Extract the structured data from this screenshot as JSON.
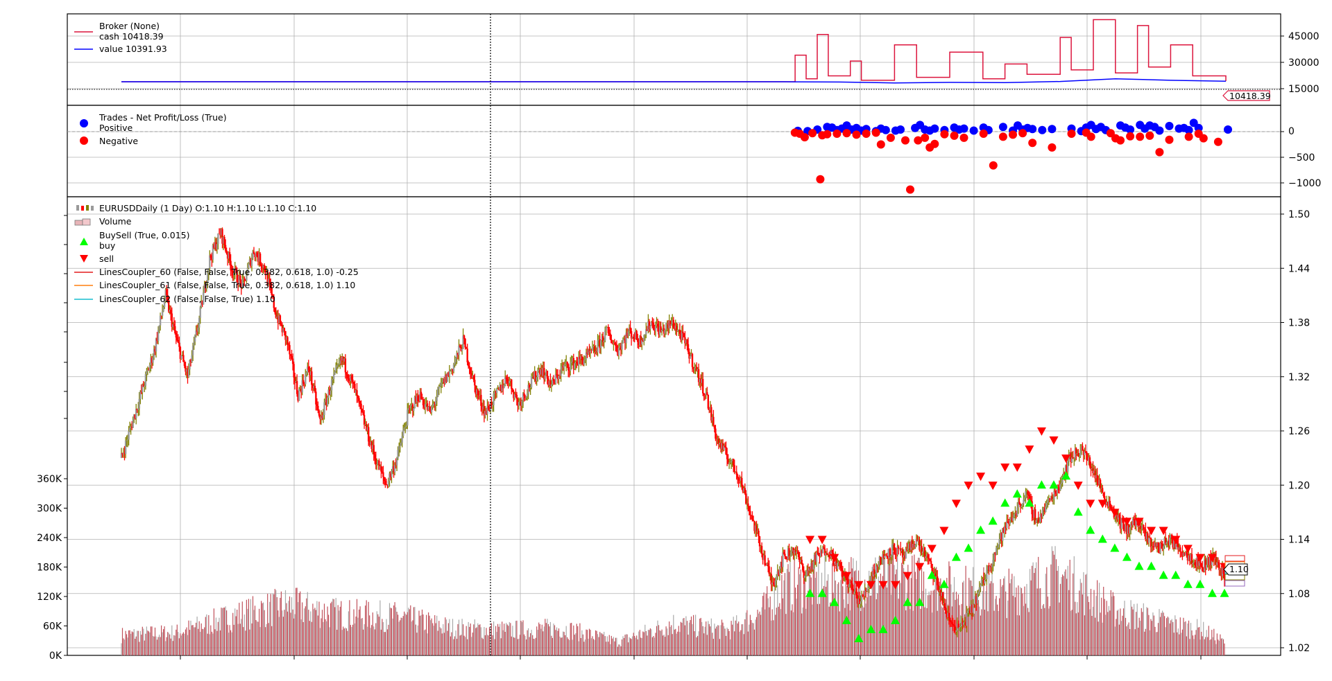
{
  "colors": {
    "cash": "#dc143c",
    "value": "#0000ff",
    "positive": "#0000ff",
    "negative": "#ff0000",
    "candle_up": "#808000",
    "candle_down": "#ff0000",
    "volume": "#c0505a",
    "buy": "#00ff00",
    "sell": "#ff0000",
    "line_red": "#e41a1c",
    "line_orange": "#ff7f0e",
    "line_cyan": "#17becf"
  },
  "chart_data": [
    {
      "type": "line",
      "panel": "broker",
      "legend": {
        "title": "Broker (None)",
        "cash_label": "cash 10418.39",
        "value_label": "value 10391.93"
      },
      "yticks": [
        "15000",
        "30000",
        "45000"
      ],
      "ylim": [
        -5000,
        55000
      ],
      "last_value_label": "10418.39",
      "series": [
        {
          "name": "cash",
          "x": [
            0,
            0.6,
            0.61,
            0.62,
            0.63,
            0.64,
            0.66,
            0.67,
            0.7,
            0.72,
            0.75,
            0.78,
            0.8,
            0.82,
            0.85,
            0.86,
            0.88,
            0.9,
            0.92,
            0.93,
            0.95,
            0.97,
            1.0
          ],
          "values": [
            10000,
            10000,
            28000,
            12000,
            42000,
            14000,
            24000,
            11000,
            35000,
            13000,
            30000,
            12000,
            22000,
            15000,
            40000,
            18000,
            52000,
            16000,
            48000,
            20000,
            35000,
            14000,
            10418.39
          ]
        },
        {
          "name": "value",
          "x": [
            0,
            0.6,
            0.65,
            0.7,
            0.75,
            0.8,
            0.85,
            0.9,
            0.95,
            1.0
          ],
          "values": [
            10000,
            10000,
            9800,
            9200,
            9600,
            9400,
            10200,
            12000,
            11000,
            10391.93
          ]
        }
      ]
    },
    {
      "type": "scatter",
      "panel": "trades",
      "legend": {
        "title": "Trades - Net Profit/Loss (True)",
        "positive_label": "Positive",
        "negative_label": "Negative"
      },
      "yticks": [
        "0",
        "−500",
        "−1000"
      ],
      "ylim": [
        -1150,
        300
      ],
      "positive": [
        [
          0.68,
          90
        ],
        [
          0.65,
          15
        ],
        [
          0.66,
          10
        ],
        [
          0.67,
          40
        ],
        [
          0.685,
          80
        ],
        [
          0.69,
          30
        ],
        [
          0.695,
          60
        ],
        [
          0.7,
          120
        ],
        [
          0.705,
          40
        ],
        [
          0.71,
          70
        ],
        [
          0.715,
          20
        ],
        [
          0.72,
          50
        ],
        [
          0.73,
          10
        ],
        [
          0.735,
          60
        ],
        [
          0.74,
          30
        ],
        [
          0.75,
          20
        ],
        [
          0.755,
          40
        ],
        [
          0.77,
          70
        ],
        [
          0.775,
          130
        ],
        [
          0.78,
          40
        ],
        [
          0.785,
          20
        ],
        [
          0.79,
          60
        ],
        [
          0.8,
          30
        ],
        [
          0.81,
          80
        ],
        [
          0.815,
          40
        ],
        [
          0.82,
          60
        ],
        [
          0.83,
          20
        ],
        [
          0.84,
          80
        ],
        [
          0.845,
          30
        ],
        [
          0.86,
          90
        ],
        [
          0.87,
          20
        ],
        [
          0.875,
          120
        ],
        [
          0.88,
          40
        ],
        [
          0.885,
          70
        ],
        [
          0.89,
          50
        ],
        [
          0.9,
          30
        ],
        [
          0.91,
          50
        ],
        [
          0.93,
          60
        ],
        [
          0.94,
          10
        ],
        [
          0.945,
          80
        ],
        [
          0.95,
          130
        ],
        [
          0.955,
          50
        ],
        [
          0.96,
          90
        ],
        [
          0.965,
          30
        ],
        [
          0.98,
          120
        ],
        [
          0.985,
          80
        ],
        [
          0.99,
          40
        ],
        [
          1.0,
          130
        ],
        [
          1.005,
          60
        ],
        [
          1.01,
          120
        ],
        [
          1.015,
          90
        ],
        [
          1.02,
          20
        ],
        [
          1.03,
          110
        ],
        [
          1.04,
          60
        ],
        [
          1.045,
          70
        ],
        [
          1.05,
          30
        ],
        [
          1.055,
          170
        ],
        [
          1.06,
          70
        ],
        [
          1.09,
          40
        ]
      ],
      "negative": [
        [
          0.647,
          -20
        ],
        [
          0.652,
          -40
        ],
        [
          0.657,
          -110
        ],
        [
          0.665,
          -30
        ],
        [
          0.673,
          -930
        ],
        [
          0.675,
          -70
        ],
        [
          0.68,
          -50
        ],
        [
          0.69,
          -40
        ],
        [
          0.7,
          -30
        ],
        [
          0.71,
          -60
        ],
        [
          0.72,
          -40
        ],
        [
          0.73,
          -20
        ],
        [
          0.735,
          -250
        ],
        [
          0.745,
          -120
        ],
        [
          0.76,
          -170
        ],
        [
          0.765,
          -1130
        ],
        [
          0.773,
          -170
        ],
        [
          0.78,
          -120
        ],
        [
          0.785,
          -310
        ],
        [
          0.79,
          -240
        ],
        [
          0.8,
          -50
        ],
        [
          0.81,
          -80
        ],
        [
          0.82,
          -120
        ],
        [
          0.84,
          -40
        ],
        [
          0.85,
          -660
        ],
        [
          0.86,
          -100
        ],
        [
          0.87,
          -60
        ],
        [
          0.88,
          -30
        ],
        [
          0.89,
          -220
        ],
        [
          0.91,
          -310
        ],
        [
          0.93,
          -40
        ],
        [
          0.945,
          -20
        ],
        [
          0.95,
          -100
        ],
        [
          0.97,
          -30
        ],
        [
          0.975,
          -130
        ],
        [
          0.98,
          -170
        ],
        [
          0.99,
          -90
        ],
        [
          1.0,
          -100
        ],
        [
          1.01,
          -80
        ],
        [
          1.02,
          -400
        ],
        [
          1.03,
          -160
        ],
        [
          1.05,
          -100
        ],
        [
          1.06,
          -40
        ],
        [
          1.065,
          -130
        ],
        [
          1.08,
          -200
        ]
      ]
    },
    {
      "type": "candlestick",
      "panel": "price",
      "legend": {
        "title": "EURUSDDaily (1 Day) O:1.10 H:1.10 L:1.10 C:1.10",
        "volume_label": "Volume",
        "buysell_label": "BuySell (True, 0.015)",
        "buy_label": "buy",
        "sell_label": "sell",
        "l0_label": "LinesCoupler_60 (False, False, True, 0.382, 0.618, 1.0) -0.25",
        "l1_label": "LinesCoupler_61 (False, False, True, 0.382, 0.618, 1.0) 1.10",
        "l2_label": "LinesCoupler_62 (False, False, True) 1.10"
      },
      "yticks_right": [
        "1.02",
        "1.08",
        "1.14",
        "1.20",
        "1.26",
        "1.32",
        "1.38",
        "1.44",
        "1.50"
      ],
      "ylim_right": [
        1.01,
        1.51
      ],
      "yticks_left": [
        "0K",
        "60K",
        "120K",
        "180K",
        "240K",
        "300K",
        "360K"
      ],
      "ylim_left": [
        0,
        900000
      ],
      "last_price_label": "1.10",
      "price_path": [
        [
          0,
          1.23
        ],
        [
          0.01,
          1.27
        ],
        [
          0.02,
          1.31
        ],
        [
          0.03,
          1.35
        ],
        [
          0.04,
          1.41
        ],
        [
          0.05,
          1.36
        ],
        [
          0.06,
          1.32
        ],
        [
          0.07,
          1.38
        ],
        [
          0.08,
          1.45
        ],
        [
          0.09,
          1.48
        ],
        [
          0.1,
          1.44
        ],
        [
          0.11,
          1.42
        ],
        [
          0.12,
          1.46
        ],
        [
          0.13,
          1.44
        ],
        [
          0.14,
          1.39
        ],
        [
          0.15,
          1.36
        ],
        [
          0.16,
          1.3
        ],
        [
          0.17,
          1.33
        ],
        [
          0.18,
          1.27
        ],
        [
          0.19,
          1.31
        ],
        [
          0.2,
          1.34
        ],
        [
          0.21,
          1.31
        ],
        [
          0.22,
          1.27
        ],
        [
          0.23,
          1.23
        ],
        [
          0.24,
          1.2
        ],
        [
          0.25,
          1.23
        ],
        [
          0.26,
          1.28
        ],
        [
          0.27,
          1.3
        ],
        [
          0.28,
          1.28
        ],
        [
          0.29,
          1.31
        ],
        [
          0.3,
          1.33
        ],
        [
          0.31,
          1.36
        ],
        [
          0.32,
          1.31
        ],
        [
          0.33,
          1.28
        ],
        [
          0.34,
          1.3
        ],
        [
          0.35,
          1.32
        ],
        [
          0.36,
          1.29
        ],
        [
          0.37,
          1.31
        ],
        [
          0.38,
          1.33
        ],
        [
          0.39,
          1.31
        ],
        [
          0.4,
          1.33
        ],
        [
          0.42,
          1.34
        ],
        [
          0.43,
          1.35
        ],
        [
          0.44,
          1.37
        ],
        [
          0.45,
          1.35
        ],
        [
          0.46,
          1.37
        ],
        [
          0.47,
          1.36
        ],
        [
          0.48,
          1.38
        ],
        [
          0.49,
          1.37
        ],
        [
          0.5,
          1.38
        ],
        [
          0.51,
          1.36
        ],
        [
          0.52,
          1.33
        ],
        [
          0.53,
          1.3
        ],
        [
          0.54,
          1.25
        ],
        [
          0.55,
          1.23
        ],
        [
          0.56,
          1.21
        ],
        [
          0.57,
          1.17
        ],
        [
          0.58,
          1.13
        ],
        [
          0.59,
          1.09
        ],
        [
          0.6,
          1.12
        ],
        [
          0.61,
          1.13
        ],
        [
          0.62,
          1.1
        ],
        [
          0.63,
          1.12
        ],
        [
          0.64,
          1.13
        ],
        [
          0.65,
          1.11
        ],
        [
          0.66,
          1.09
        ],
        [
          0.67,
          1.07
        ],
        [
          0.68,
          1.1
        ],
        [
          0.69,
          1.12
        ],
        [
          0.7,
          1.13
        ],
        [
          0.71,
          1.12
        ],
        [
          0.72,
          1.14
        ],
        [
          0.73,
          1.12
        ],
        [
          0.74,
          1.09
        ],
        [
          0.75,
          1.05
        ],
        [
          0.76,
          1.04
        ],
        [
          0.77,
          1.06
        ],
        [
          0.78,
          1.09
        ],
        [
          0.79,
          1.12
        ],
        [
          0.8,
          1.15
        ],
        [
          0.81,
          1.17
        ],
        [
          0.82,
          1.19
        ],
        [
          0.83,
          1.16
        ],
        [
          0.84,
          1.18
        ],
        [
          0.85,
          1.2
        ],
        [
          0.86,
          1.23
        ],
        [
          0.87,
          1.24
        ],
        [
          0.88,
          1.22
        ],
        [
          0.89,
          1.19
        ],
        [
          0.9,
          1.17
        ],
        [
          0.91,
          1.15
        ],
        [
          0.92,
          1.16
        ],
        [
          0.93,
          1.14
        ],
        [
          0.94,
          1.13
        ],
        [
          0.95,
          1.14
        ],
        [
          0.96,
          1.13
        ],
        [
          0.97,
          1.12
        ],
        [
          0.98,
          1.11
        ],
        [
          0.99,
          1.12
        ],
        [
          1.0,
          1.1
        ]
      ],
      "buy_markers": [
        [
          0.66,
          1.08
        ],
        [
          0.67,
          1.08
        ],
        [
          0.68,
          1.07
        ],
        [
          0.69,
          1.05
        ],
        [
          0.7,
          1.03
        ],
        [
          0.71,
          1.04
        ],
        [
          0.72,
          1.04
        ],
        [
          0.73,
          1.05
        ],
        [
          0.74,
          1.07
        ],
        [
          0.75,
          1.07
        ],
        [
          0.76,
          1.1
        ],
        [
          0.77,
          1.09
        ],
        [
          0.78,
          1.12
        ],
        [
          0.79,
          1.13
        ],
        [
          0.8,
          1.15
        ],
        [
          0.81,
          1.16
        ],
        [
          0.82,
          1.18
        ],
        [
          0.83,
          1.19
        ],
        [
          0.84,
          1.18
        ],
        [
          0.85,
          1.2
        ],
        [
          0.86,
          1.2
        ],
        [
          0.87,
          1.21
        ],
        [
          0.88,
          1.17
        ],
        [
          0.89,
          1.15
        ],
        [
          0.9,
          1.14
        ],
        [
          0.91,
          1.13
        ],
        [
          0.92,
          1.12
        ],
        [
          0.93,
          1.11
        ],
        [
          0.94,
          1.11
        ],
        [
          0.95,
          1.1
        ],
        [
          0.96,
          1.1
        ],
        [
          0.97,
          1.09
        ],
        [
          0.98,
          1.09
        ],
        [
          0.99,
          1.08
        ],
        [
          1.0,
          1.08
        ]
      ],
      "sell_markers": [
        [
          0.66,
          1.14
        ],
        [
          0.67,
          1.14
        ],
        [
          0.68,
          1.12
        ],
        [
          0.69,
          1.1
        ],
        [
          0.7,
          1.09
        ],
        [
          0.71,
          1.09
        ],
        [
          0.72,
          1.09
        ],
        [
          0.73,
          1.09
        ],
        [
          0.74,
          1.1
        ],
        [
          0.75,
          1.11
        ],
        [
          0.76,
          1.13
        ],
        [
          0.77,
          1.15
        ],
        [
          0.78,
          1.18
        ],
        [
          0.79,
          1.2
        ],
        [
          0.8,
          1.21
        ],
        [
          0.81,
          1.2
        ],
        [
          0.82,
          1.22
        ],
        [
          0.83,
          1.22
        ],
        [
          0.84,
          1.24
        ],
        [
          0.85,
          1.26
        ],
        [
          0.86,
          1.25
        ],
        [
          0.87,
          1.23
        ],
        [
          0.88,
          1.2
        ],
        [
          0.89,
          1.18
        ],
        [
          0.9,
          1.18
        ],
        [
          0.91,
          1.17
        ],
        [
          0.92,
          1.16
        ],
        [
          0.93,
          1.16
        ],
        [
          0.94,
          1.15
        ],
        [
          0.95,
          1.15
        ],
        [
          0.96,
          1.14
        ],
        [
          0.97,
          1.13
        ],
        [
          0.98,
          1.12
        ],
        [
          0.99,
          1.12
        ],
        [
          1.0,
          1.11
        ]
      ],
      "volume_path": [
        [
          0,
          45000
        ],
        [
          0.05,
          50000
        ],
        [
          0.1,
          85000
        ],
        [
          0.15,
          110000
        ],
        [
          0.2,
          90000
        ],
        [
          0.25,
          85000
        ],
        [
          0.3,
          60000
        ],
        [
          0.35,
          55000
        ],
        [
          0.4,
          60000
        ],
        [
          0.45,
          30000
        ],
        [
          0.5,
          70000
        ],
        [
          0.55,
          55000
        ],
        [
          0.58,
          95000
        ],
        [
          0.6,
          150000
        ],
        [
          0.65,
          160000
        ],
        [
          0.7,
          170000
        ],
        [
          0.75,
          150000
        ],
        [
          0.8,
          135000
        ],
        [
          0.85,
          180000
        ],
        [
          0.88,
          130000
        ],
        [
          0.9,
          100000
        ],
        [
          0.95,
          70000
        ],
        [
          0.98,
          55000
        ],
        [
          1.0,
          30000
        ]
      ]
    }
  ]
}
